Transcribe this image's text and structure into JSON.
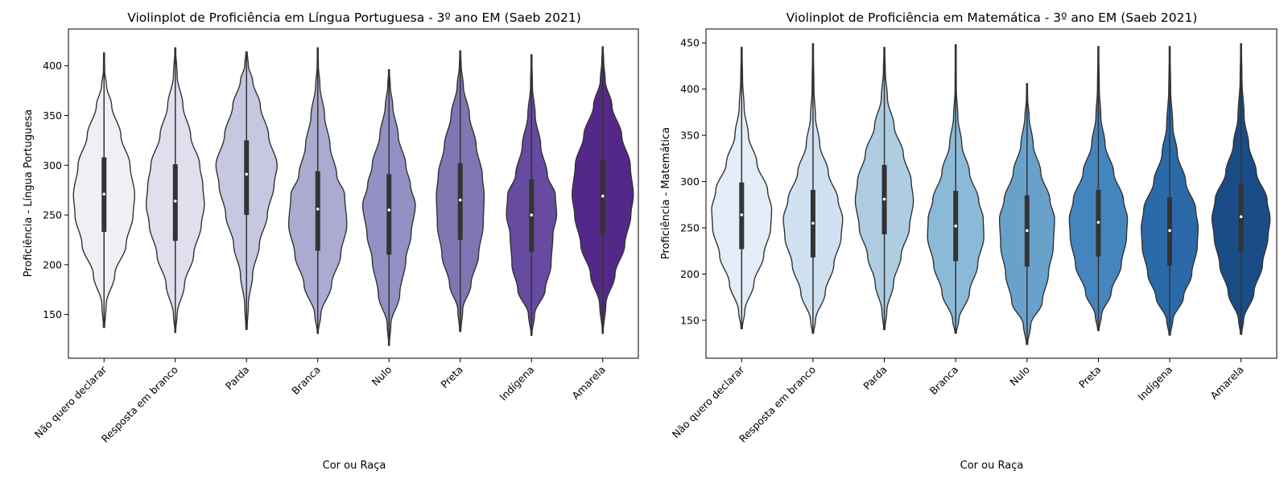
{
  "chart_data": [
    {
      "type": "violin",
      "title": "Violinplot de Proficiência em Língua Portuguesa - 3º ano EM (Saeb 2021)",
      "xlabel": "Cor ou Raça",
      "ylabel": "Proficiência - Língua Portuguesa",
      "ylim": [
        106,
        437
      ],
      "yticks": [
        150,
        200,
        250,
        300,
        350,
        400
      ],
      "grid": false,
      "categories": [
        "Não quero declarar",
        "Resposta em branco",
        "Parda",
        "Branca",
        "Nulo",
        "Preta",
        "Indígena",
        "Amarela"
      ],
      "colors": [
        "#f1eff6",
        "#e0dfee",
        "#c6c7e1",
        "#abaad0",
        "#9390c3",
        "#7f76b3",
        "#664ba0",
        "#542888"
      ],
      "violins": [
        {
          "min": 137,
          "max": 413,
          "q1": 233,
          "median": 271,
          "q3": 308,
          "density": [
            [
              137,
              0.02
            ],
            [
              160,
              0.07
            ],
            [
              190,
              0.35
            ],
            [
              220,
              0.72
            ],
            [
              250,
              0.95
            ],
            [
              270,
              1.0
            ],
            [
              300,
              0.85
            ],
            [
              330,
              0.55
            ],
            [
              360,
              0.25
            ],
            [
              380,
              0.08
            ],
            [
              395,
              0.02
            ],
            [
              413,
              0.01
            ]
          ]
        },
        {
          "min": 132,
          "max": 418,
          "q1": 224,
          "median": 264,
          "q3": 301,
          "density": [
            [
              132,
              0.01
            ],
            [
              150,
              0.06
            ],
            [
              180,
              0.3
            ],
            [
              210,
              0.6
            ],
            [
              240,
              0.85
            ],
            [
              260,
              0.95
            ],
            [
              280,
              0.9
            ],
            [
              300,
              0.8
            ],
            [
              330,
              0.5
            ],
            [
              360,
              0.25
            ],
            [
              390,
              0.06
            ],
            [
              418,
              0.01
            ]
          ]
        },
        {
          "min": 135,
          "max": 414,
          "q1": 250,
          "median": 291,
          "q3": 325,
          "density": [
            [
              135,
              0.02
            ],
            [
              160,
              0.06
            ],
            [
              190,
              0.2
            ],
            [
              220,
              0.42
            ],
            [
              250,
              0.68
            ],
            [
              280,
              0.9
            ],
            [
              300,
              1.0
            ],
            [
              330,
              0.72
            ],
            [
              360,
              0.45
            ],
            [
              385,
              0.2
            ],
            [
              400,
              0.06
            ],
            [
              414,
              0.02
            ]
          ]
        },
        {
          "min": 131,
          "max": 418,
          "q1": 214,
          "median": 256,
          "q3": 294,
          "density": [
            [
              131,
              0.01
            ],
            [
              150,
              0.1
            ],
            [
              180,
              0.45
            ],
            [
              210,
              0.75
            ],
            [
              240,
              0.95
            ],
            [
              270,
              0.88
            ],
            [
              290,
              0.62
            ],
            [
              320,
              0.4
            ],
            [
              350,
              0.22
            ],
            [
              380,
              0.07
            ],
            [
              400,
              0.02
            ],
            [
              418,
              0.01
            ]
          ]
        },
        {
          "min": 119,
          "max": 396,
          "q1": 210,
          "median": 255,
          "q3": 291,
          "density": [
            [
              119,
              0.01
            ],
            [
              140,
              0.06
            ],
            [
              170,
              0.35
            ],
            [
              205,
              0.55
            ],
            [
              230,
              0.72
            ],
            [
              260,
              0.86
            ],
            [
              280,
              0.7
            ],
            [
              300,
              0.55
            ],
            [
              330,
              0.3
            ],
            [
              360,
              0.12
            ],
            [
              380,
              0.04
            ],
            [
              396,
              0.01
            ]
          ]
        },
        {
          "min": 133,
          "max": 415,
          "q1": 225,
          "median": 265,
          "q3": 302,
          "density": [
            [
              133,
              0.02
            ],
            [
              155,
              0.08
            ],
            [
              180,
              0.35
            ],
            [
              210,
              0.6
            ],
            [
              240,
              0.75
            ],
            [
              270,
              0.78
            ],
            [
              290,
              0.72
            ],
            [
              320,
              0.52
            ],
            [
              350,
              0.3
            ],
            [
              380,
              0.1
            ],
            [
              400,
              0.03
            ],
            [
              415,
              0.01
            ]
          ]
        },
        {
          "min": 129,
          "max": 411,
          "q1": 213,
          "median": 250,
          "q3": 286,
          "density": [
            [
              129,
              0.01
            ],
            [
              150,
              0.1
            ],
            [
              175,
              0.45
            ],
            [
              200,
              0.64
            ],
            [
              230,
              0.7
            ],
            [
              250,
              0.82
            ],
            [
              270,
              0.78
            ],
            [
              290,
              0.52
            ],
            [
              320,
              0.3
            ],
            [
              350,
              0.12
            ],
            [
              380,
              0.03
            ],
            [
              411,
              0.01
            ]
          ]
        },
        {
          "min": 131,
          "max": 419,
          "q1": 230,
          "median": 269,
          "q3": 305,
          "density": [
            [
              131,
              0.01
            ],
            [
              160,
              0.1
            ],
            [
              190,
              0.4
            ],
            [
              220,
              0.72
            ],
            [
              250,
              0.92
            ],
            [
              270,
              1.0
            ],
            [
              300,
              0.9
            ],
            [
              330,
              0.62
            ],
            [
              360,
              0.3
            ],
            [
              385,
              0.08
            ],
            [
              405,
              0.03
            ],
            [
              419,
              0.01
            ]
          ]
        }
      ]
    },
    {
      "type": "violin",
      "title": "Violinplot de Proficiência em Matemática - 3º ano EM (Saeb 2021)",
      "xlabel": "Cor ou Raça",
      "ylabel": "Proficiência - Matemática",
      "ylim": [
        109,
        465
      ],
      "yticks": [
        150,
        200,
        250,
        300,
        350,
        400,
        450
      ],
      "grid": false,
      "categories": [
        "Não quero declarar",
        "Resposta em branco",
        "Parda",
        "Branca",
        "Nulo",
        "Preta",
        "Indígena",
        "Amarela"
      ],
      "colors": [
        "#e3edf8",
        "#cfe1f1",
        "#aecde3",
        "#8bbad9",
        "#68a2cb",
        "#4585be",
        "#2b6aa9",
        "#1a4c87"
      ],
      "violins": [
        {
          "min": 141,
          "max": 445,
          "q1": 227,
          "median": 264,
          "q3": 299,
          "density": [
            [
              141,
              0.02
            ],
            [
              160,
              0.1
            ],
            [
              190,
              0.4
            ],
            [
              220,
              0.72
            ],
            [
              250,
              0.95
            ],
            [
              270,
              0.98
            ],
            [
              290,
              0.85
            ],
            [
              320,
              0.5
            ],
            [
              350,
              0.22
            ],
            [
              380,
              0.08
            ],
            [
              410,
              0.03
            ],
            [
              445,
              0.01
            ]
          ]
        },
        {
          "min": 136,
          "max": 449,
          "q1": 218,
          "median": 255,
          "q3": 291,
          "density": [
            [
              136,
              0.02
            ],
            [
              150,
              0.08
            ],
            [
              180,
              0.4
            ],
            [
              210,
              0.68
            ],
            [
              240,
              0.92
            ],
            [
              260,
              0.97
            ],
            [
              280,
              0.82
            ],
            [
              310,
              0.5
            ],
            [
              340,
              0.22
            ],
            [
              370,
              0.08
            ],
            [
              400,
              0.03
            ],
            [
              449,
              0.01
            ]
          ]
        },
        {
          "min": 140,
          "max": 445,
          "q1": 243,
          "median": 281,
          "q3": 318,
          "density": [
            [
              140,
              0.02
            ],
            [
              160,
              0.08
            ],
            [
              190,
              0.3
            ],
            [
              220,
              0.55
            ],
            [
              250,
              0.82
            ],
            [
              280,
              0.95
            ],
            [
              300,
              0.88
            ],
            [
              330,
              0.62
            ],
            [
              360,
              0.32
            ],
            [
              390,
              0.1
            ],
            [
              420,
              0.03
            ],
            [
              445,
              0.01
            ]
          ]
        },
        {
          "min": 136,
          "max": 448,
          "q1": 214,
          "median": 252,
          "q3": 290,
          "density": [
            [
              136,
              0.02
            ],
            [
              150,
              0.1
            ],
            [
              180,
              0.45
            ],
            [
              210,
              0.72
            ],
            [
              240,
              0.92
            ],
            [
              260,
              0.9
            ],
            [
              280,
              0.75
            ],
            [
              310,
              0.45
            ],
            [
              340,
              0.2
            ],
            [
              370,
              0.07
            ],
            [
              400,
              0.02
            ],
            [
              448,
              0.01
            ]
          ]
        },
        {
          "min": 124,
          "max": 406,
          "q1": 208,
          "median": 247,
          "q3": 285,
          "density": [
            [
              124,
              0.02
            ],
            [
              145,
              0.12
            ],
            [
              170,
              0.5
            ],
            [
              200,
              0.7
            ],
            [
              230,
              0.86
            ],
            [
              260,
              0.9
            ],
            [
              280,
              0.75
            ],
            [
              310,
              0.45
            ],
            [
              340,
              0.2
            ],
            [
              370,
              0.07
            ],
            [
              390,
              0.02
            ],
            [
              406,
              0.01
            ]
          ]
        },
        {
          "min": 139,
          "max": 446,
          "q1": 219,
          "median": 256,
          "q3": 291,
          "density": [
            [
              139,
              0.02
            ],
            [
              155,
              0.1
            ],
            [
              180,
              0.42
            ],
            [
              210,
              0.75
            ],
            [
              240,
              0.92
            ],
            [
              260,
              0.95
            ],
            [
              280,
              0.82
            ],
            [
              310,
              0.5
            ],
            [
              340,
              0.22
            ],
            [
              370,
              0.08
            ],
            [
              400,
              0.03
            ],
            [
              446,
              0.01
            ]
          ]
        },
        {
          "min": 134,
          "max": 446,
          "q1": 209,
          "median": 247,
          "q3": 283,
          "density": [
            [
              134,
              0.02
            ],
            [
              150,
              0.1
            ],
            [
              175,
              0.45
            ],
            [
              200,
              0.72
            ],
            [
              230,
              0.9
            ],
            [
              250,
              0.93
            ],
            [
              270,
              0.85
            ],
            [
              300,
              0.52
            ],
            [
              330,
              0.25
            ],
            [
              360,
              0.1
            ],
            [
              400,
              0.03
            ],
            [
              446,
              0.01
            ]
          ]
        },
        {
          "min": 135,
          "max": 449,
          "q1": 224,
          "median": 262,
          "q3": 298,
          "density": [
            [
              135,
              0.02
            ],
            [
              150,
              0.08
            ],
            [
              180,
              0.42
            ],
            [
              210,
              0.7
            ],
            [
              240,
              0.88
            ],
            [
              260,
              0.95
            ],
            [
              280,
              0.85
            ],
            [
              310,
              0.5
            ],
            [
              340,
              0.25
            ],
            [
              370,
              0.1
            ],
            [
              410,
              0.03
            ],
            [
              449,
              0.01
            ]
          ]
        }
      ]
    }
  ]
}
